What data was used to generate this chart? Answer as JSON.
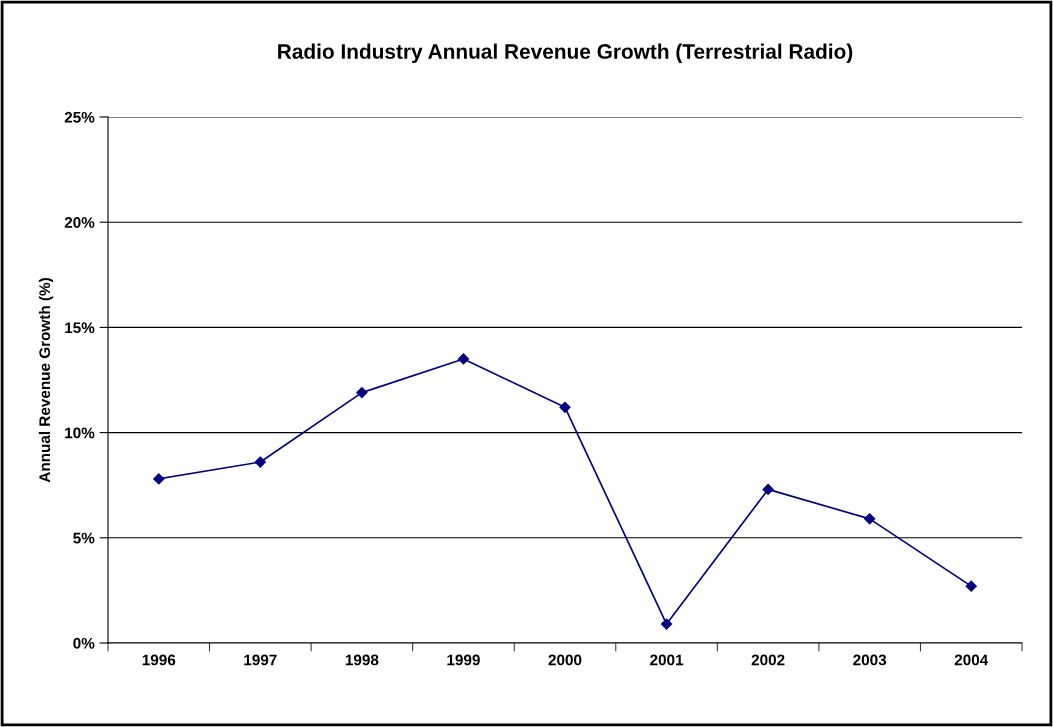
{
  "chart_data": {
    "type": "line",
    "title": "Radio Industry Annual Revenue Growth (Terrestrial Radio)",
    "ylabel": "Annual Revenue Growth (%)",
    "categories": [
      "1996",
      "1997",
      "1998",
      "1999",
      "2000",
      "2001",
      "2002",
      "2003",
      "2004"
    ],
    "series": [
      {
        "color": "#000080",
        "values": [
          7.8,
          8.6,
          11.9,
          13.5,
          11.2,
          0.9,
          7.3,
          5.9,
          2.7
        ]
      }
    ],
    "ylim": [
      0,
      25
    ],
    "yticks": [
      {
        "value": 0,
        "label": "0%"
      },
      {
        "value": 5,
        "label": "5%"
      },
      {
        "value": 10,
        "label": "10%"
      },
      {
        "value": 15,
        "label": "15%"
      },
      {
        "value": 20,
        "label": "20%"
      },
      {
        "value": 25,
        "label": "25%"
      }
    ],
    "grid": "y",
    "marker": "diamond",
    "line_style": "solid",
    "legend": false
  }
}
